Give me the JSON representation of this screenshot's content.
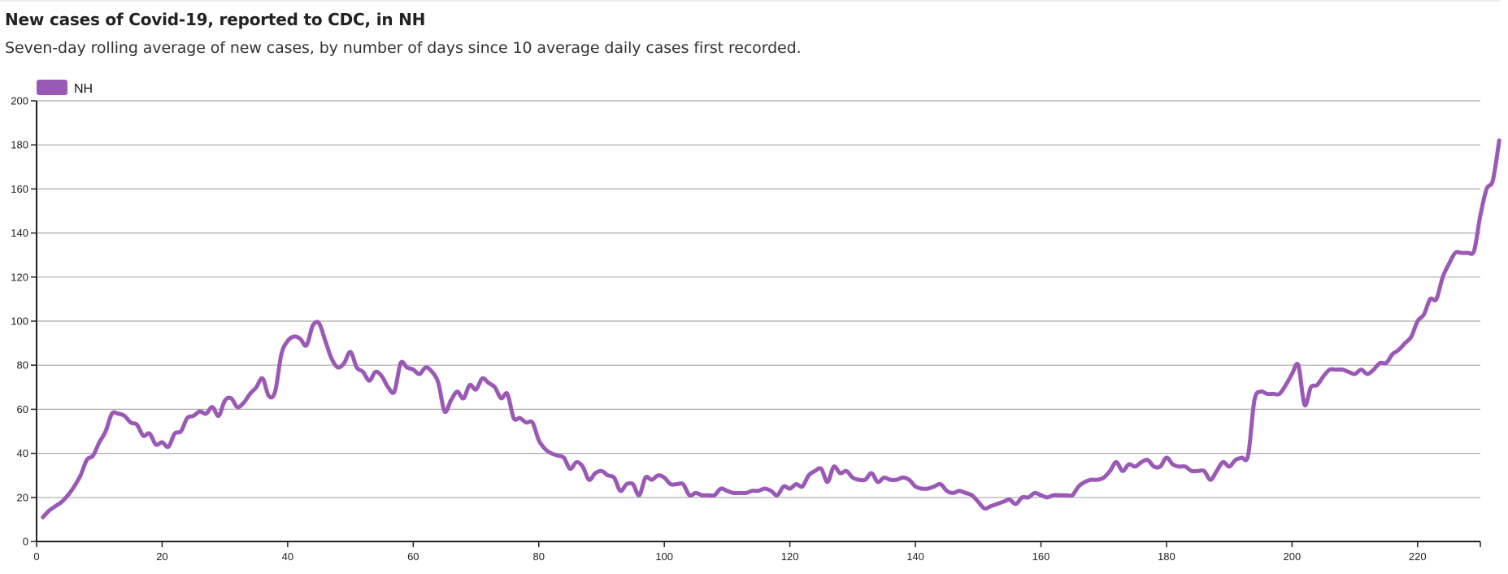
{
  "header": {
    "title": "New cases of Covid-19, reported to CDC, in NH",
    "subtitle": "Seven-day rolling average of new cases, by number of days since 10 average daily cases first recorded."
  },
  "colors": {
    "series": "#9b59b6",
    "grid": "#aaaaaa",
    "axis": "#222222"
  },
  "chart_data": {
    "type": "line",
    "title": "New cases of Covid-19, reported to CDC, in NH",
    "subtitle": "Seven-day rolling average of new cases, by number of days since 10 average daily cases first recorded.",
    "xlabel": "",
    "ylabel": "",
    "xlim": [
      0,
      230
    ],
    "ylim": [
      0,
      200
    ],
    "x_ticks": [
      "0",
      "20",
      "40",
      "60",
      "80",
      "100",
      "120",
      "140",
      "160",
      "180",
      "200",
      "220"
    ],
    "y_ticks": [
      "0",
      "20",
      "40",
      "60",
      "80",
      "100",
      "120",
      "140",
      "160",
      "180",
      "200"
    ],
    "grid": true,
    "legend": {
      "position": "top-left",
      "entries": [
        "NH"
      ]
    },
    "series": [
      {
        "name": "NH",
        "x_start": 1,
        "values": [
          11,
          14,
          16,
          18,
          21,
          25,
          30,
          37,
          39,
          45,
          50,
          58,
          58,
          57,
          54,
          53,
          48,
          49,
          44,
          45,
          43,
          49,
          50,
          56,
          57,
          59,
          58,
          61,
          57,
          64,
          65,
          61,
          63,
          67,
          70,
          74,
          66,
          68,
          85,
          91,
          93,
          92,
          89,
          98,
          99,
          91,
          83,
          79,
          81,
          86,
          79,
          77,
          73,
          77,
          75,
          70,
          68,
          81,
          79,
          78,
          76,
          79,
          77,
          72,
          59,
          64,
          68,
          65,
          71,
          69,
          74,
          72,
          70,
          65,
          67,
          56,
          56,
          54,
          54,
          46,
          42,
          40,
          39,
          38,
          33,
          36,
          34,
          28,
          31,
          32,
          30,
          29,
          23,
          26,
          26,
          21,
          29,
          28,
          30,
          29,
          26,
          26,
          26,
          21,
          22,
          21,
          21,
          21,
          24,
          23,
          22,
          22,
          22,
          23,
          23,
          24,
          23,
          21,
          25,
          24,
          26,
          25,
          30,
          32,
          33,
          27,
          34,
          31,
          32,
          29,
          28,
          28,
          31,
          27,
          29,
          28,
          28,
          29,
          28,
          25,
          24,
          24,
          25,
          26,
          23,
          22,
          23,
          22,
          21,
          18,
          15,
          16,
          17,
          18,
          19,
          17,
          20,
          20,
          22,
          21,
          20,
          21,
          21,
          21,
          21,
          25,
          27,
          28,
          28,
          29,
          32,
          36,
          32,
          35,
          34,
          36,
          37,
          34,
          34,
          38,
          35,
          34,
          34,
          32,
          32,
          32,
          28,
          32,
          36,
          34,
          37,
          38,
          39,
          64,
          68,
          67,
          67,
          67,
          71,
          76,
          80,
          62,
          70,
          71,
          75,
          78,
          78,
          78,
          77,
          76,
          78,
          76,
          78,
          81,
          81,
          85,
          87,
          90,
          93,
          100,
          103,
          110,
          110,
          120,
          126,
          131,
          131,
          131,
          132,
          148,
          160,
          164,
          182
        ]
      }
    ]
  }
}
